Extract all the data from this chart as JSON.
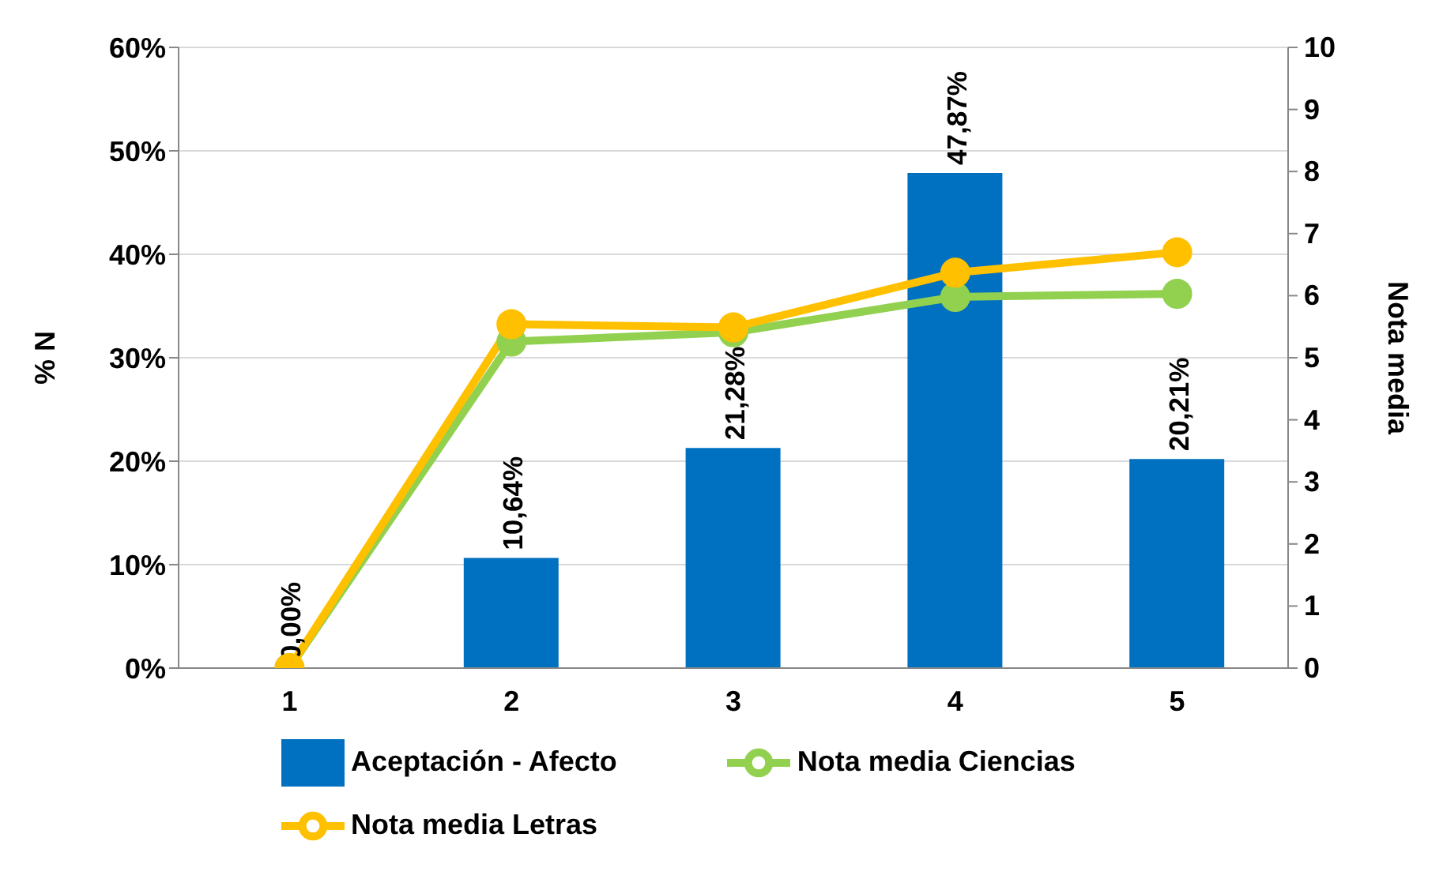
{
  "chart_data": {
    "type": "bar",
    "categories": [
      "1",
      "2",
      "3",
      "4",
      "5"
    ],
    "series": [
      {
        "name": "Aceptación - Afecto",
        "color": "#0070c0",
        "values": [
          0,
          10.64,
          21.28,
          47.87,
          20.21
        ],
        "value_labels": [
          "0,00%",
          "10,64%",
          "21,28%",
          "47,87%",
          "20,21%"
        ]
      },
      {
        "name": "Nota media Ciencias",
        "type": "line",
        "axis": "y2",
        "color": "#92d050",
        "values": [
          0,
          5.26,
          5.41,
          5.98,
          6.03
        ]
      },
      {
        "name": "Nota media Letras",
        "type": "line",
        "axis": "y2",
        "color": "#ffc000",
        "values": [
          0,
          5.54,
          5.49,
          6.37,
          6.7
        ]
      }
    ],
    "ylabel": "% N",
    "y2label": "Nota media",
    "ylim": [
      0,
      60
    ],
    "yticks": [
      {
        "value": 0,
        "label": "0%"
      },
      {
        "value": 10,
        "label": "10%"
      },
      {
        "value": 20,
        "label": "20%"
      },
      {
        "value": 30,
        "label": "30%"
      },
      {
        "value": 40,
        "label": "40%"
      },
      {
        "value": 50,
        "label": "50%"
      },
      {
        "value": 60,
        "label": "60%"
      }
    ],
    "y2lim": [
      0,
      10
    ],
    "y2ticks": [
      0,
      1,
      2,
      3,
      4,
      5,
      6,
      7,
      8,
      9,
      10
    ],
    "grid": "y",
    "legend": "bottom",
    "marker": "circle",
    "line_style": "solid"
  }
}
